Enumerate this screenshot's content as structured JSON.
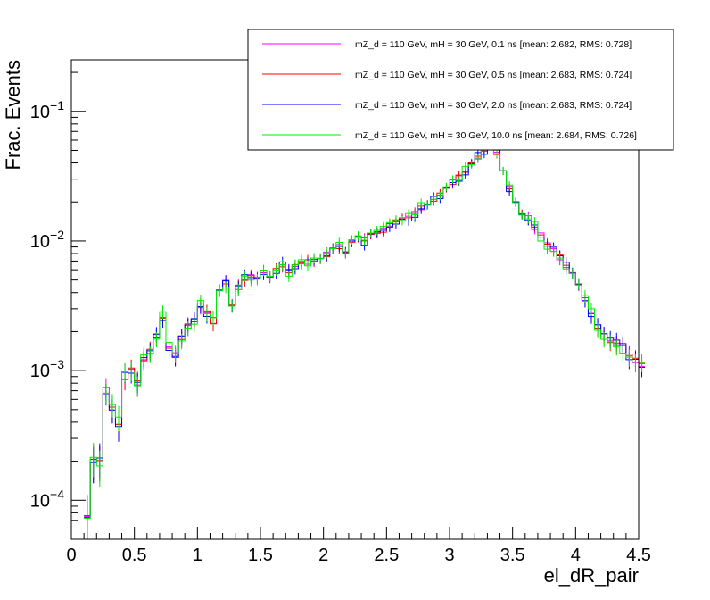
{
  "chart_data": {
    "type": "line",
    "style": "step-histogram-with-error-bars",
    "title": "",
    "xlabel": "el_dR_pair",
    "ylabel": "Frac. Events",
    "xlim": [
      0,
      4.5
    ],
    "ylim": [
      5e-05,
      0.25
    ],
    "yscale": "log",
    "x_ticks": [
      {
        "value": 0,
        "label": "0"
      },
      {
        "value": 0.5,
        "label": "0.5"
      },
      {
        "value": 1,
        "label": "1"
      },
      {
        "value": 1.5,
        "label": "1.5"
      },
      {
        "value": 2,
        "label": "2"
      },
      {
        "value": 2.5,
        "label": "2.5"
      },
      {
        "value": 3,
        "label": "3"
      },
      {
        "value": 3.5,
        "label": "3.5"
      },
      {
        "value": 4,
        "label": "4"
      },
      {
        "value": 4.5,
        "label": "4.5"
      }
    ],
    "y_ticks": [
      {
        "value": 0.0001,
        "base": "10",
        "exp": "−4"
      },
      {
        "value": 0.001,
        "base": "10",
        "exp": "−3"
      },
      {
        "value": 0.01,
        "base": "10",
        "exp": "−2"
      },
      {
        "value": 0.1,
        "base": "10",
        "exp": "−1"
      }
    ],
    "legend": {
      "position": "top-right",
      "entries": [
        {
          "label": "mZ_d = 110 GeV, mH = 30 GeV, 0.1 ns [mean: 2.682, RMS: 0.728]",
          "color": "#ff00ff"
        },
        {
          "label": "mZ_d = 110 GeV, mH = 30 GeV, 0.5 ns [mean: 2.683, RMS: 0.724]",
          "color": "#ff0000"
        },
        {
          "label": "mZ_d = 110 GeV, mH = 30 GeV, 2.0 ns [mean: 2.683, RMS: 0.724]",
          "color": "#0000ff"
        },
        {
          "label": "mZ_d = 110 GeV, mH = 30 GeV, 10.0 ns [mean: 2.684, RMS: 0.726]",
          "color": "#00ee00"
        }
      ]
    },
    "bin_width": 0.05,
    "x_start": 0.1,
    "series": [
      {
        "name": "0.1 ns",
        "color": "#ff00ff",
        "jitter": 0.06
      },
      {
        "name": "0.5 ns",
        "color": "#ff0000",
        "jitter": 0.05
      },
      {
        "name": "2.0 ns",
        "color": "#0000ff",
        "jitter": 0.08
      },
      {
        "name": "10.0 ns",
        "color": "#00ee00",
        "jitter": 0.1
      }
    ],
    "values": [
      8e-05,
      0.0002,
      0.0002,
      0.0007,
      0.0005,
      0.0004,
      0.0009,
      0.001,
      0.0008,
      0.0012,
      0.0014,
      0.0018,
      0.0026,
      0.0015,
      0.0013,
      0.0018,
      0.0022,
      0.0025,
      0.0032,
      0.0028,
      0.0024,
      0.0042,
      0.0048,
      0.0033,
      0.0044,
      0.0052,
      0.0055,
      0.005,
      0.0058,
      0.0054,
      0.006,
      0.0065,
      0.0058,
      0.0063,
      0.0068,
      0.007,
      0.0068,
      0.0074,
      0.0078,
      0.0085,
      0.009,
      0.0083,
      0.0095,
      0.0105,
      0.01,
      0.011,
      0.0115,
      0.0122,
      0.013,
      0.014,
      0.0145,
      0.0155,
      0.0165,
      0.018,
      0.0195,
      0.021,
      0.023,
      0.025,
      0.028,
      0.031,
      0.035,
      0.04,
      0.045,
      0.05,
      0.055,
      0.048,
      0.035,
      0.025,
      0.02,
      0.017,
      0.015,
      0.013,
      0.011,
      0.0095,
      0.0085,
      0.0075,
      0.0065,
      0.0055,
      0.0045,
      0.0035,
      0.0028,
      0.0022,
      0.0019,
      0.0017,
      0.0016,
      0.0015,
      0.0013,
      0.0012,
      0.0011
    ]
  }
}
